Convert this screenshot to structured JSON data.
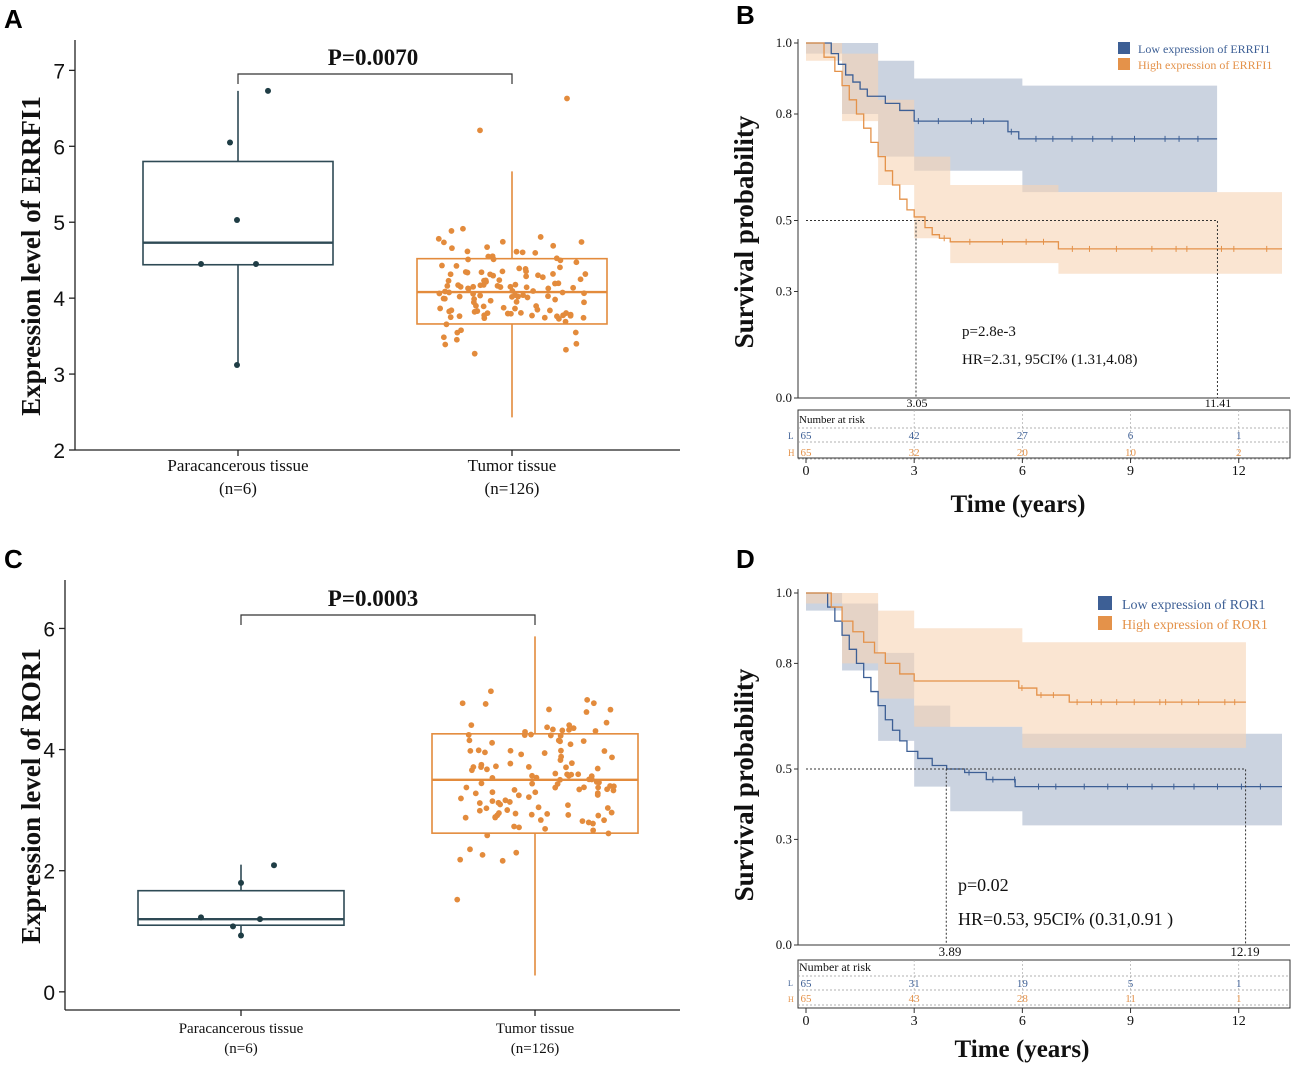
{
  "colors": {
    "box_dark": "#2e4a55",
    "dot_dark": "#1f3d45",
    "orange": "#e38b3c",
    "km_blue": "#3d5f95",
    "km_orange": "#e4924a",
    "band_blue": "#a8b6cc",
    "band_orange": "#f6d3b4"
  },
  "panels": {
    "A": {
      "letter": "A"
    },
    "B": {
      "letter": "B"
    },
    "C": {
      "letter": "C"
    },
    "D": {
      "letter": "D"
    }
  },
  "chart_data": [
    {
      "panel": "A",
      "type": "box",
      "ylabel": "Expression level of ERRFI1",
      "ylim": [
        2,
        7.4
      ],
      "yticks": [
        2,
        3,
        4,
        5,
        6,
        7
      ],
      "pvalue": "P=0.0070",
      "groups": [
        {
          "label": "Paracancerous tissue",
          "n": "(n=6)",
          "q1": 4.44,
          "median": 4.73,
          "q3": 5.8,
          "whisker_low": 3.11,
          "whisker_high": 6.73,
          "points": [
            6.73,
            6.05,
            5.03,
            4.45,
            4.45,
            3.12
          ]
        },
        {
          "label": "Tumor tissue",
          "n": "(n=126)",
          "q1": 3.66,
          "median": 4.08,
          "q3": 4.52,
          "whisker_low": 2.43,
          "whisker_high": 5.67,
          "outliers": [
            6.63,
            6.21
          ]
        }
      ]
    },
    {
      "panel": "B",
      "type": "survival",
      "ylabel": "Survival probability",
      "xlabel": "Time (years)",
      "xticks": [
        0,
        3,
        6,
        9,
        12
      ],
      "yticks": [
        1.0,
        0.8,
        0.5,
        0.3,
        0.0
      ],
      "ytick_labels": [
        "1.0",
        "0.8",
        "0.5",
        "0.3",
        "0.0"
      ],
      "legend": [
        "Low expression of ERRFI1",
        "High expression of ERRFI1"
      ],
      "pvalue": "p=2.8e-3",
      "hr": "HR=2.31, 95CI% (1.31,4.08)",
      "median_times": [
        3.05,
        11.41
      ],
      "median_labels": [
        "3.05",
        "11.41"
      ],
      "risk_title": "Number at risk",
      "risk_rows": [
        {
          "key": "L",
          "values": [
            "65",
            "42",
            "27",
            "6",
            "1"
          ]
        },
        {
          "key": "H",
          "values": [
            "65",
            "32",
            "20",
            "10",
            "2"
          ]
        }
      ],
      "series": [
        {
          "name": "Low",
          "t": [
            0,
            0.7,
            0.9,
            1.1,
            1.3,
            1.5,
            1.7,
            2.2,
            2.6,
            3.0,
            5.6,
            5.9,
            11.4
          ],
          "s": [
            1.0,
            0.97,
            0.94,
            0.91,
            0.89,
            0.87,
            0.85,
            0.83,
            0.81,
            0.78,
            0.75,
            0.73,
            0.73
          ]
        },
        {
          "name": "High",
          "t": [
            0,
            0.5,
            0.8,
            1.0,
            1.2,
            1.4,
            1.6,
            1.8,
            2.0,
            2.2,
            2.4,
            2.6,
            2.8,
            3.0,
            3.3,
            3.5,
            3.7,
            4.0,
            7.0,
            13.2
          ],
          "s": [
            1.0,
            0.96,
            0.92,
            0.88,
            0.84,
            0.8,
            0.76,
            0.72,
            0.68,
            0.64,
            0.6,
            0.56,
            0.53,
            0.51,
            0.48,
            0.46,
            0.45,
            0.44,
            0.42,
            0.42
          ]
        }
      ],
      "bands": [
        {
          "t": [
            0,
            1,
            2,
            3,
            6,
            11.4
          ],
          "lo": [
            0.97,
            0.8,
            0.68,
            0.64,
            0.58,
            0.58
          ],
          "hi": [
            1.0,
            1.0,
            0.95,
            0.9,
            0.88,
            0.88
          ]
        },
        {
          "t": [
            0,
            1,
            2,
            3,
            4,
            7,
            13.2
          ],
          "lo": [
            0.95,
            0.78,
            0.6,
            0.45,
            0.38,
            0.35,
            0.35
          ],
          "hi": [
            1.0,
            0.97,
            0.84,
            0.68,
            0.6,
            0.58,
            0.58
          ]
        }
      ]
    },
    {
      "panel": "C",
      "type": "box",
      "ylabel": "Expression level of ROR1",
      "ylim": [
        -0.3,
        6.8
      ],
      "yticks": [
        0,
        2,
        4,
        6
      ],
      "pvalue": "P=0.0003",
      "groups": [
        {
          "label": "Paracancerous tissue",
          "n": "(n=6)",
          "q1": 1.1,
          "median": 1.2,
          "q3": 1.67,
          "whisker_low": 0.9,
          "whisker_high": 2.1,
          "points": [
            2.09,
            1.8,
            1.23,
            1.2,
            1.08,
            0.93
          ]
        },
        {
          "label": "Tumor tissue",
          "n": "(n=126)",
          "q1": 2.62,
          "median": 3.5,
          "q3": 4.26,
          "whisker_low": 0.27,
          "whisker_high": 5.87
        }
      ]
    },
    {
      "panel": "D",
      "type": "survival",
      "ylabel": "Survival probability",
      "xlabel": "Time (years)",
      "xticks": [
        0,
        3,
        6,
        9,
        12
      ],
      "yticks": [
        1.0,
        0.8,
        0.5,
        0.3,
        0.0
      ],
      "ytick_labels": [
        "1.0",
        "0.8",
        "0.5",
        "0.3",
        "0.0"
      ],
      "legend": [
        "Low expression of ROR1",
        "High expression of ROR1"
      ],
      "pvalue": "p=0.02",
      "hr": "HR=0.53, 95CI% (0.31,0.91 )",
      "median_times": [
        3.89,
        12.19
      ],
      "median_labels": [
        "3.89",
        "12.19"
      ],
      "risk_title": "Number at risk",
      "risk_rows": [
        {
          "key": "L",
          "values": [
            "65",
            "31",
            "19",
            "5",
            "1"
          ]
        },
        {
          "key": "H",
          "values": [
            "65",
            "43",
            "28",
            "11",
            "1"
          ]
        }
      ],
      "series": [
        {
          "name": "Low",
          "t": [
            0,
            0.6,
            0.8,
            1.0,
            1.2,
            1.4,
            1.6,
            1.8,
            2.0,
            2.2,
            2.4,
            2.6,
            2.8,
            3.1,
            3.5,
            3.9,
            4.4,
            5.0,
            5.8,
            13.2
          ],
          "s": [
            1.0,
            0.96,
            0.92,
            0.88,
            0.84,
            0.8,
            0.76,
            0.72,
            0.68,
            0.64,
            0.61,
            0.58,
            0.55,
            0.53,
            0.51,
            0.5,
            0.49,
            0.47,
            0.45,
            0.45
          ]
        },
        {
          "name": "High",
          "t": [
            0,
            0.7,
            1.0,
            1.3,
            1.6,
            1.9,
            2.2,
            2.6,
            3.0,
            5.9,
            6.4,
            7.3,
            12.2
          ],
          "s": [
            1.0,
            0.96,
            0.92,
            0.89,
            0.86,
            0.83,
            0.8,
            0.77,
            0.75,
            0.73,
            0.71,
            0.69,
            0.69
          ]
        }
      ],
      "bands": [
        {
          "t": [
            0,
            1,
            2,
            3,
            4,
            6,
            13.2
          ],
          "lo": [
            0.95,
            0.78,
            0.58,
            0.45,
            0.38,
            0.34,
            0.34
          ],
          "hi": [
            1.0,
            0.97,
            0.83,
            0.68,
            0.62,
            0.6,
            0.6
          ]
        },
        {
          "t": [
            0,
            1,
            2,
            3,
            6,
            12.2
          ],
          "lo": [
            0.97,
            0.8,
            0.7,
            0.62,
            0.56,
            0.56
          ],
          "hi": [
            1.0,
            1.0,
            0.95,
            0.9,
            0.86,
            0.86
          ]
        }
      ]
    }
  ]
}
